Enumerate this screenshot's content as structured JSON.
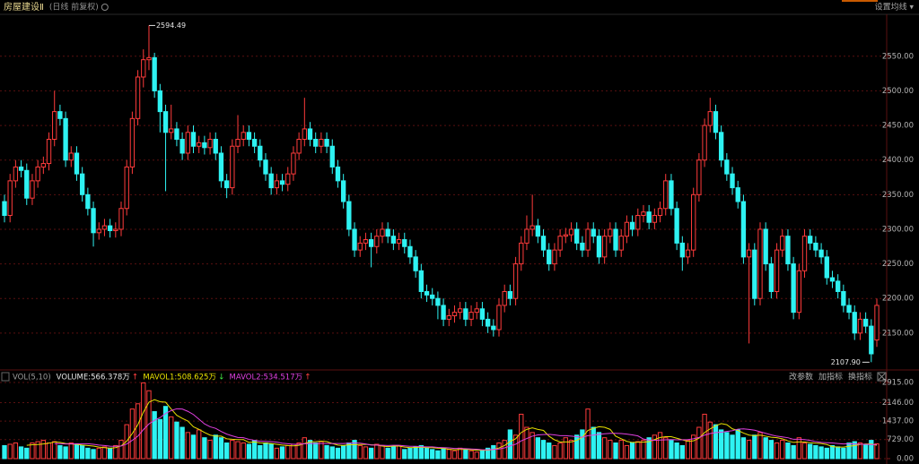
{
  "header": {
    "title": "房屋建设Ⅱ",
    "subtitle": "(日线 前复权)",
    "settings": "设置均线 ▾"
  },
  "chart_data": [
    {
      "type": "candlestick",
      "up_color": "#ff3b3b",
      "down_color": "#2ef2f2",
      "grid": true,
      "ylim": [
        2098,
        2608
      ],
      "yticks": [
        {
          "value": 2150,
          "label": "2150.00"
        },
        {
          "value": 2200,
          "label": "2200.00"
        },
        {
          "value": 2250,
          "label": "2250.00"
        },
        {
          "value": 2300,
          "label": "2300.00"
        },
        {
          "value": 2350,
          "label": "2350.00"
        },
        {
          "value": 2400,
          "label": "2400.00"
        },
        {
          "value": 2450,
          "label": "2450.00"
        },
        {
          "value": 2500,
          "label": "2500.00"
        },
        {
          "value": 2550,
          "label": "2550.00"
        }
      ],
      "annotations": [
        "2594.49",
        "2107.90"
      ],
      "open": [
        2340,
        2320,
        2370,
        2390,
        2385,
        2345,
        2370,
        2390,
        2395,
        2430,
        2470,
        2460,
        2400,
        2410,
        2380,
        2350,
        2330,
        2295,
        2300,
        2305,
        2298,
        2300,
        2330,
        2390,
        2460,
        2520,
        2545,
        2548,
        2500,
        2470,
        2440,
        2445,
        2430,
        2410,
        2440,
        2420,
        2425,
        2418,
        2430,
        2410,
        2370,
        2360,
        2420,
        2430,
        2440,
        2430,
        2420,
        2400,
        2380,
        2360,
        2370,
        2365,
        2380,
        2410,
        2430,
        2445,
        2430,
        2420,
        2430,
        2420,
        2390,
        2370,
        2340,
        2300,
        2270,
        2280,
        2285,
        2275,
        2290,
        2300,
        2290,
        2280,
        2285,
        2275,
        2260,
        2240,
        2210,
        2205,
        2200,
        2190,
        2170,
        2175,
        2180,
        2185,
        2170,
        2180,
        2185,
        2170,
        2160,
        2155,
        2190,
        2210,
        2200,
        2250,
        2280,
        2300,
        2305,
        2290,
        2270,
        2250,
        2270,
        2290,
        2292,
        2300,
        2280,
        2270,
        2300,
        2290,
        2260,
        2290,
        2300,
        2270,
        2290,
        2310,
        2300,
        2320,
        2325,
        2310,
        2320,
        2330,
        2370,
        2330,
        2280,
        2260,
        2270,
        2350,
        2400,
        2450,
        2470,
        2440,
        2400,
        2380,
        2360,
        2340,
        2260,
        2270,
        2200,
        2300,
        2250,
        2210,
        2270,
        2290,
        2250,
        2180,
        2240,
        2290,
        2280,
        2270,
        2260,
        2230,
        2225,
        2210,
        2190,
        2180,
        2150,
        2170,
        2160,
        2140
      ],
      "high": [
        2350,
        2380,
        2400,
        2400,
        2395,
        2380,
        2400,
        2405,
        2440,
        2500,
        2480,
        2470,
        2420,
        2420,
        2390,
        2360,
        2340,
        2310,
        2315,
        2315,
        2310,
        2340,
        2400,
        2470,
        2530,
        2560,
        2594.49,
        2555,
        2510,
        2480,
        2480,
        2455,
        2440,
        2450,
        2450,
        2435,
        2435,
        2440,
        2440,
        2420,
        2380,
        2430,
        2465,
        2450,
        2450,
        2440,
        2430,
        2410,
        2390,
        2380,
        2380,
        2390,
        2420,
        2440,
        2490,
        2455,
        2440,
        2440,
        2440,
        2430,
        2400,
        2380,
        2350,
        2310,
        2290,
        2295,
        2295,
        2300,
        2310,
        2310,
        2300,
        2295,
        2295,
        2285,
        2270,
        2250,
        2220,
        2215,
        2210,
        2200,
        2185,
        2190,
        2195,
        2195,
        2190,
        2195,
        2195,
        2180,
        2170,
        2200,
        2220,
        2220,
        2260,
        2290,
        2320,
        2350,
        2315,
        2300,
        2280,
        2280,
        2300,
        2302,
        2310,
        2310,
        2290,
        2310,
        2310,
        2300,
        2300,
        2310,
        2310,
        2300,
        2320,
        2320,
        2330,
        2335,
        2335,
        2330,
        2340,
        2380,
        2380,
        2340,
        2290,
        2280,
        2360,
        2410,
        2460,
        2490,
        2480,
        2450,
        2410,
        2390,
        2370,
        2350,
        2280,
        2280,
        2310,
        2310,
        2260,
        2280,
        2300,
        2300,
        2260,
        2250,
        2300,
        2300,
        2290,
        2280,
        2270,
        2240,
        2235,
        2220,
        2200,
        2190,
        2180,
        2180,
        2170,
        2200
      ],
      "low": [
        2310,
        2310,
        2360,
        2375,
        2335,
        2335,
        2360,
        2380,
        2385,
        2420,
        2450,
        2390,
        2390,
        2370,
        2340,
        2320,
        2275,
        2285,
        2290,
        2288,
        2288,
        2290,
        2320,
        2380,
        2450,
        2505,
        2530,
        2490,
        2440,
        2355,
        2430,
        2420,
        2400,
        2400,
        2410,
        2410,
        2408,
        2408,
        2400,
        2360,
        2345,
        2350,
        2410,
        2420,
        2420,
        2410,
        2390,
        2370,
        2350,
        2350,
        2355,
        2355,
        2370,
        2400,
        2420,
        2420,
        2410,
        2410,
        2410,
        2380,
        2360,
        2330,
        2290,
        2260,
        2260,
        2270,
        2245,
        2265,
        2280,
        2280,
        2270,
        2270,
        2265,
        2250,
        2230,
        2200,
        2195,
        2190,
        2170,
        2160,
        2160,
        2165,
        2170,
        2160,
        2160,
        2170,
        2160,
        2150,
        2145,
        2145,
        2180,
        2190,
        2190,
        2240,
        2270,
        2290,
        2280,
        2260,
        2240,
        2240,
        2260,
        2280,
        2282,
        2270,
        2260,
        2260,
        2280,
        2250,
        2250,
        2280,
        2260,
        2260,
        2280,
        2290,
        2290,
        2310,
        2300,
        2300,
        2310,
        2320,
        2320,
        2270,
        2240,
        2250,
        2260,
        2340,
        2390,
        2440,
        2430,
        2390,
        2370,
        2350,
        2330,
        2250,
        2135,
        2190,
        2190,
        2240,
        2200,
        2200,
        2260,
        2240,
        2170,
        2170,
        2230,
        2270,
        2260,
        2250,
        2220,
        2215,
        2200,
        2180,
        2170,
        2140,
        2140,
        2150,
        2107.9,
        2130
      ],
      "close": [
        2320,
        2370,
        2390,
        2385,
        2345,
        2370,
        2390,
        2395,
        2430,
        2470,
        2460,
        2400,
        2410,
        2380,
        2350,
        2330,
        2295,
        2300,
        2305,
        2298,
        2300,
        2330,
        2390,
        2460,
        2520,
        2545,
        2548,
        2500,
        2470,
        2440,
        2445,
        2430,
        2410,
        2440,
        2420,
        2425,
        2418,
        2430,
        2410,
        2370,
        2360,
        2420,
        2430,
        2440,
        2430,
        2420,
        2400,
        2380,
        2360,
        2370,
        2365,
        2380,
        2410,
        2430,
        2445,
        2430,
        2420,
        2430,
        2420,
        2390,
        2370,
        2340,
        2300,
        2270,
        2280,
        2285,
        2275,
        2290,
        2300,
        2290,
        2280,
        2285,
        2275,
        2260,
        2240,
        2210,
        2205,
        2200,
        2190,
        2170,
        2175,
        2180,
        2185,
        2170,
        2180,
        2185,
        2170,
        2160,
        2155,
        2190,
        2210,
        2200,
        2250,
        2280,
        2300,
        2305,
        2290,
        2270,
        2250,
        2270,
        2290,
        2292,
        2300,
        2280,
        2270,
        2300,
        2290,
        2260,
        2290,
        2300,
        2270,
        2290,
        2310,
        2300,
        2320,
        2325,
        2310,
        2320,
        2330,
        2370,
        2330,
        2280,
        2260,
        2270,
        2350,
        2400,
        2450,
        2470,
        2440,
        2400,
        2380,
        2360,
        2340,
        2260,
        2270,
        2200,
        2300,
        2250,
        2210,
        2270,
        2290,
        2250,
        2180,
        2240,
        2290,
        2280,
        2270,
        2260,
        2230,
        2225,
        2210,
        2190,
        2180,
        2150,
        2170,
        2160,
        2120,
        2190
      ]
    },
    {
      "type": "bar",
      "title": "VOL(5,10)",
      "grid": true,
      "ylim": [
        0,
        2950
      ],
      "yticks": [
        {
          "value": 0,
          "label": "0.00"
        },
        {
          "value": 729,
          "label": "729.00"
        },
        {
          "value": 1437,
          "label": "1437.00"
        },
        {
          "value": 2146,
          "label": "2146.00"
        },
        {
          "value": 2915,
          "label": "2915.00"
        }
      ],
      "buttons": [
        "改参数",
        "加指标",
        "换指标"
      ],
      "series": [
        {
          "name": "VOLUME:",
          "value_label": "566.378万",
          "arrow": "↑",
          "color": "#e6e6e6",
          "values": [
            500,
            550,
            600,
            450,
            400,
            600,
            650,
            700,
            600,
            650,
            500,
            450,
            600,
            550,
            500,
            400,
            350,
            400,
            450,
            400,
            500,
            700,
            1300,
            1900,
            2100,
            2900,
            2600,
            1800,
            1500,
            2000,
            1600,
            1400,
            1200,
            1000,
            900,
            1100,
            800,
            700,
            900,
            800,
            600,
            700,
            650,
            600,
            550,
            700,
            500,
            600,
            550,
            400,
            450,
            500,
            550,
            600,
            800,
            700,
            600,
            650,
            500,
            450,
            400,
            500,
            600,
            700,
            500,
            450,
            400,
            550,
            500,
            400,
            450,
            500,
            350,
            400,
            450,
            500,
            400,
            350,
            300,
            400,
            350,
            300,
            400,
            350,
            300,
            250,
            300,
            400,
            500,
            600,
            700,
            1100,
            900,
            1700,
            1200,
            1000,
            800,
            700,
            600,
            500,
            600,
            800,
            700,
            900,
            1100,
            1900,
            1200,
            1000,
            800,
            700,
            600,
            700,
            500,
            600,
            650,
            700,
            800,
            900,
            1000,
            800,
            700,
            600,
            500,
            700,
            900,
            1200,
            1700,
            1400,
            1300,
            1100,
            1000,
            900,
            1100,
            800,
            700,
            900,
            1000,
            800,
            700,
            600,
            700,
            600,
            500,
            800,
            600,
            550,
            500,
            450,
            400,
            500,
            450,
            400,
            600,
            650,
            600,
            550,
            700,
            566.378
          ]
        },
        {
          "name": "MAVOL1:",
          "value_label": "508.625万",
          "arrow": "↓",
          "color": "#e8e000",
          "values": [
            null,
            null,
            null,
            null,
            510,
            530,
            540,
            560,
            590,
            640,
            620,
            580,
            560,
            550,
            520,
            500,
            480,
            440,
            420,
            400,
            420,
            490,
            670,
            960,
            1300,
            1780,
            2160,
            2260,
            2180,
            2160,
            1900,
            1660,
            1540,
            1440,
            1220,
            1120,
            1000,
            900,
            860,
            860,
            760,
            740,
            730,
            730,
            620,
            640,
            600,
            590,
            580,
            550,
            520,
            500,
            490,
            510,
            580,
            640,
            650,
            670,
            650,
            580,
            520,
            500,
            530,
            530,
            540,
            550,
            530,
            520,
            480,
            460,
            480,
            480,
            440,
            420,
            430,
            440,
            420,
            420,
            400,
            390,
            360,
            340,
            350,
            360,
            340,
            320,
            320,
            320,
            350,
            410,
            500,
            660,
            760,
            1000,
            1120,
            1180,
            1120,
            1080,
            860,
            720,
            640,
            640,
            640,
            700,
            820,
            1080,
            1160,
            1220,
            1200,
            1120,
            860,
            760,
            660,
            620,
            630,
            630,
            650,
            730,
            810,
            840,
            840,
            780,
            720,
            660,
            680,
            780,
            1000,
            1140,
            1260,
            1340,
            1300,
            1140,
            1080,
            980,
            900,
            880,
            900,
            860,
            820,
            800,
            760,
            680,
            620,
            640,
            640,
            610,
            590,
            580,
            540,
            460,
            440,
            440,
            470,
            500,
            540,
            560,
            560,
            508.625
          ]
        },
        {
          "name": "MAVOL2:",
          "value_label": "534.517万",
          "arrow": "↑",
          "color": "#e040e0",
          "values": [
            null,
            null,
            null,
            null,
            null,
            null,
            null,
            null,
            null,
            575,
            575,
            560,
            560,
            570,
            570,
            570,
            550,
            520,
            500,
            475,
            470,
            485,
            560,
            700,
            860,
            1110,
            1330,
            1470,
            1570,
            1730,
            1840,
            1910,
            1900,
            1810,
            1690,
            1510,
            1330,
            1220,
            1160,
            1040,
            940,
            870,
            810,
            800,
            740,
            700,
            670,
            660,
            650,
            630,
            590,
            570,
            550,
            550,
            570,
            580,
            580,
            580,
            580,
            580,
            580,
            580,
            590,
            600,
            590,
            560,
            520,
            520,
            510,
            500,
            510,
            510,
            490,
            470,
            470,
            460,
            450,
            450,
            430,
            420,
            410,
            390,
            390,
            380,
            370,
            360,
            340,
            340,
            350,
            370,
            410,
            490,
            550,
            680,
            770,
            860,
            910,
            920,
            930,
            910,
            880,
            880,
            860,
            840,
            820,
            880,
            900,
            930,
            950,
            970,
            970,
            960,
            940,
            910,
            870,
            750,
            710,
            700,
            710,
            720,
            730,
            720,
            720,
            730,
            760,
            810,
            900,
            960,
            1000,
            1010,
            1040,
            1070,
            1130,
            1140,
            1120,
            1090,
            1030,
            970,
            910,
            860,
            830,
            800,
            740,
            740,
            730,
            700,
            650,
            620,
            610,
            600,
            580,
            560,
            570,
            560,
            550,
            550,
            540,
            534.517
          ]
        }
      ]
    }
  ]
}
